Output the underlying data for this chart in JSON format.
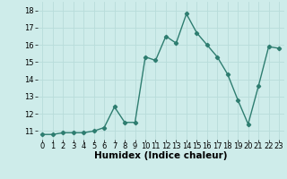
{
  "x": [
    0,
    1,
    2,
    3,
    4,
    5,
    6,
    7,
    8,
    9,
    10,
    11,
    12,
    13,
    14,
    15,
    16,
    17,
    18,
    19,
    20,
    21,
    22,
    23
  ],
  "y": [
    10.8,
    10.8,
    10.9,
    10.9,
    10.9,
    11.0,
    11.2,
    12.4,
    11.5,
    11.5,
    15.3,
    15.1,
    16.5,
    16.1,
    17.8,
    16.7,
    16.0,
    15.3,
    14.3,
    12.8,
    11.4,
    13.6,
    15.9,
    15.8
  ],
  "xlabel": "Humidex (Indice chaleur)",
  "ylim": [
    10.5,
    18.5
  ],
  "xlim": [
    -0.5,
    23.5
  ],
  "line_color": "#2e7d70",
  "marker": "D",
  "marker_size": 2.2,
  "linewidth": 1.0,
  "bg_color": "#ceecea",
  "grid_color": "#b8dcda",
  "xlabel_fontsize": 7.5,
  "tick_fontsize": 6,
  "yticks": [
    11,
    12,
    13,
    14,
    15,
    16,
    17,
    18
  ],
  "xticks": [
    0,
    1,
    2,
    3,
    4,
    5,
    6,
    7,
    8,
    9,
    10,
    11,
    12,
    13,
    14,
    15,
    16,
    17,
    18,
    19,
    20,
    21,
    22,
    23
  ]
}
